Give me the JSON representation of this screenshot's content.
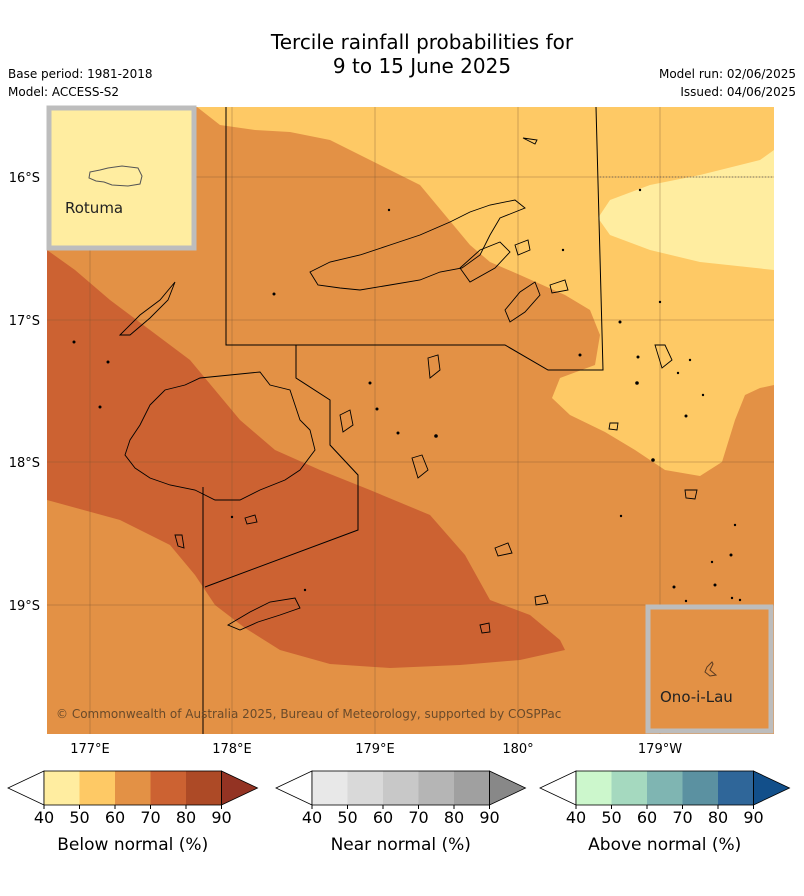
{
  "title_line1": "Tercile rainfall probabilities for",
  "title_line2": "9 to 15 June 2025",
  "base_period": "Base period: 1981-2018",
  "model": "Model: ACCESS-S2",
  "model_run": "Model run: 02/06/2025",
  "issued": "Issued: 04/06/2025",
  "copyright": "© Commonwealth of Australia 2025, Bureau of Meteorology, supported by COSPPac",
  "lat_labels": [
    "16°S",
    "17°S",
    "18°S",
    "19°S"
  ],
  "lon_labels": [
    "177°E",
    "178°E",
    "179°E",
    "180°",
    "179°W"
  ],
  "insets": {
    "rotuma": "Rotuma",
    "ono": "Ono-i-Lau"
  },
  "colors": {
    "below_40_50": "#ffeda0",
    "below_50_60": "#fec965",
    "below_60_70": "#e39145",
    "below_70_80": "#cc6232",
    "inset_border": "#bdbdbd"
  },
  "colorbars": [
    {
      "label": "Below normal (%)",
      "ticks": [
        "40",
        "50",
        "60",
        "70",
        "80",
        "90"
      ],
      "colors": [
        "#ffffff",
        "#ffeda0",
        "#fec965",
        "#e39145",
        "#cc6232",
        "#ad4a26",
        "#933323"
      ]
    },
    {
      "label": "Near normal (%)",
      "ticks": [
        "40",
        "50",
        "60",
        "70",
        "80",
        "90"
      ],
      "colors": [
        "#ffffff",
        "#e8e8e8",
        "#d9d9d9",
        "#c8c8c8",
        "#b5b5b5",
        "#a0a0a0",
        "#888888"
      ]
    },
    {
      "label": "Above normal (%)",
      "ticks": [
        "40",
        "50",
        "60",
        "70",
        "80",
        "90"
      ],
      "colors": [
        "#ffffff",
        "#ccf7cc",
        "#a5d9bf",
        "#7fb5b2",
        "#5b91a1",
        "#2f6699",
        "#124f8a"
      ]
    }
  ]
}
